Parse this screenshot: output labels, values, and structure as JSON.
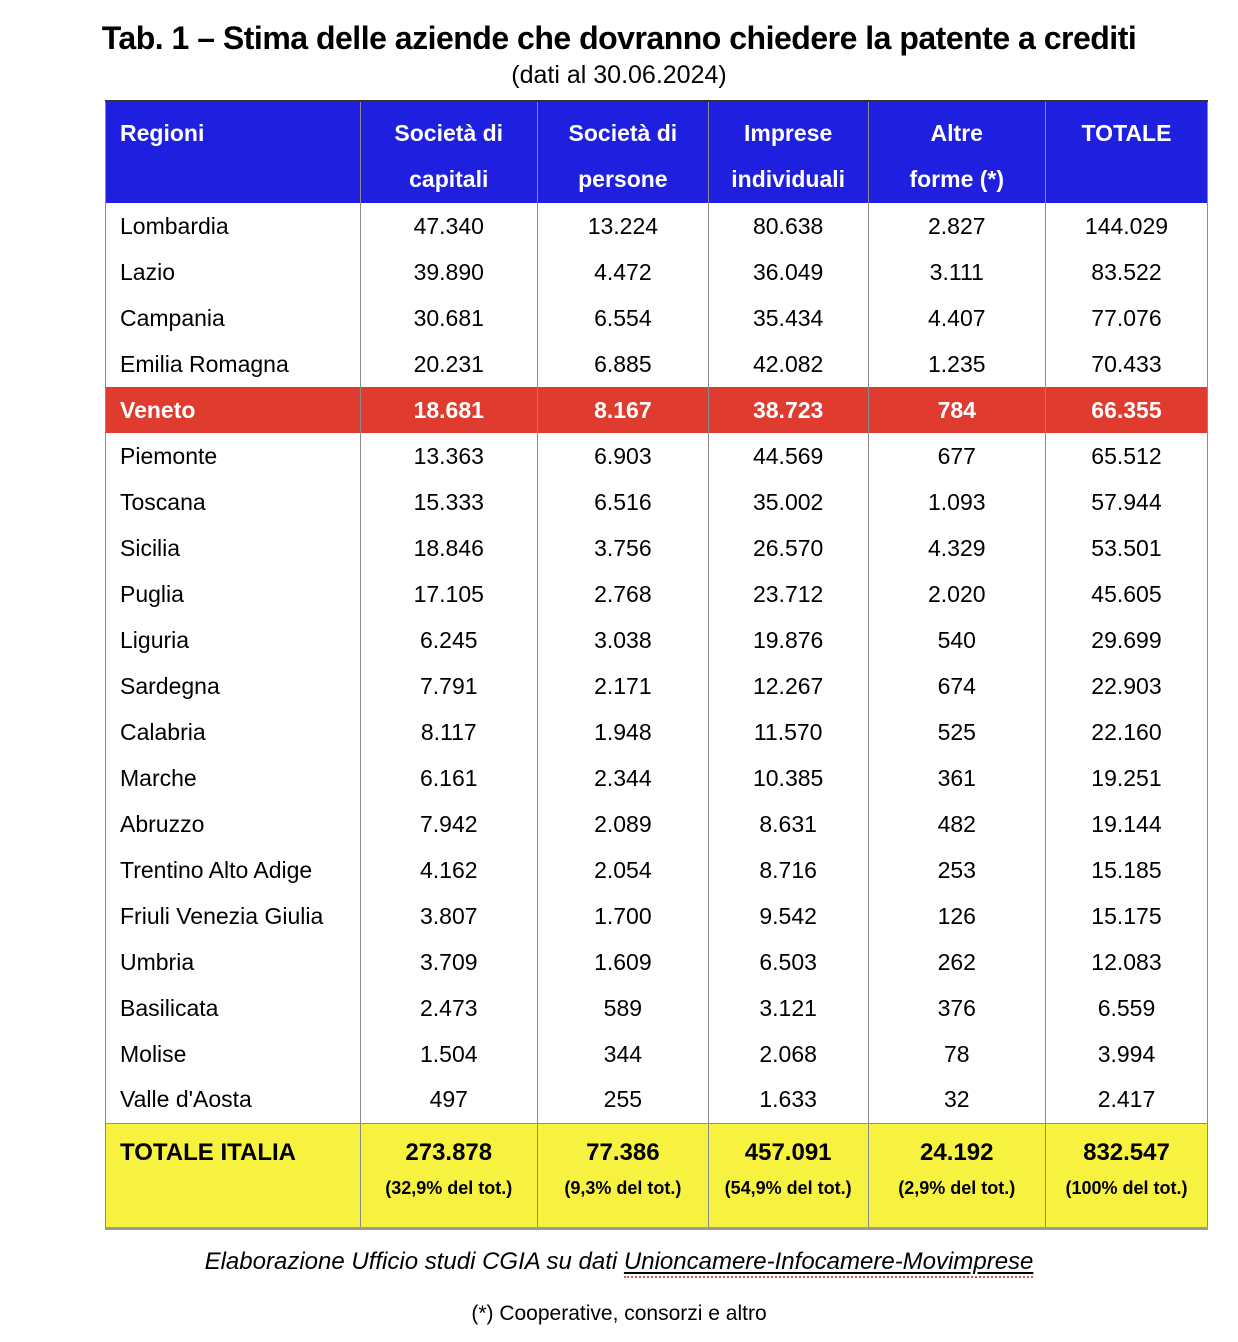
{
  "title": "Tab. 1 – Stima delle aziende che dovranno chiedere la patente a crediti",
  "subtitle": "(dati al 30.06.2024)",
  "colors": {
    "header_blue": "#1f1fe0",
    "highlight_red": "#e03b2f",
    "total_yellow": "#f7f23f",
    "squiggle_red": "#e05348",
    "border_gray": "#8a8a8a"
  },
  "table": {
    "headers": [
      {
        "line1": "Regioni",
        "line2": ""
      },
      {
        "line1": "Società di",
        "line2": "capitali"
      },
      {
        "line1": "Società di",
        "line2": "persone"
      },
      {
        "line1": "Imprese",
        "line2": "individuali"
      },
      {
        "line1": "Altre",
        "line2": "forme (*)"
      },
      {
        "line1": "TOTALE",
        "line2": ""
      }
    ],
    "rows": [
      {
        "region": "Lombardia",
        "values": [
          "47.340",
          "13.224",
          "80.638",
          "2.827",
          "144.029"
        ],
        "highlight": false
      },
      {
        "region": "Lazio",
        "values": [
          "39.890",
          "4.472",
          "36.049",
          "3.111",
          "83.522"
        ],
        "highlight": false
      },
      {
        "region": "Campania",
        "values": [
          "30.681",
          "6.554",
          "35.434",
          "4.407",
          "77.076"
        ],
        "highlight": false
      },
      {
        "region": "Emilia Romagna",
        "values": [
          "20.231",
          "6.885",
          "42.082",
          "1.235",
          "70.433"
        ],
        "highlight": false
      },
      {
        "region": "Veneto",
        "values": [
          "18.681",
          "8.167",
          "38.723",
          "784",
          "66.355"
        ],
        "highlight": true
      },
      {
        "region": "Piemonte",
        "values": [
          "13.363",
          "6.903",
          "44.569",
          "677",
          "65.512"
        ],
        "highlight": false
      },
      {
        "region": "Toscana",
        "values": [
          "15.333",
          "6.516",
          "35.002",
          "1.093",
          "57.944"
        ],
        "highlight": false
      },
      {
        "region": "Sicilia",
        "values": [
          "18.846",
          "3.756",
          "26.570",
          "4.329",
          "53.501"
        ],
        "highlight": false
      },
      {
        "region": "Puglia",
        "values": [
          "17.105",
          "2.768",
          "23.712",
          "2.020",
          "45.605"
        ],
        "highlight": false
      },
      {
        "region": "Liguria",
        "values": [
          "6.245",
          "3.038",
          "19.876",
          "540",
          "29.699"
        ],
        "highlight": false
      },
      {
        "region": "Sardegna",
        "values": [
          "7.791",
          "2.171",
          "12.267",
          "674",
          "22.903"
        ],
        "highlight": false
      },
      {
        "region": "Calabria",
        "values": [
          "8.117",
          "1.948",
          "11.570",
          "525",
          "22.160"
        ],
        "highlight": false
      },
      {
        "region": "Marche",
        "values": [
          "6.161",
          "2.344",
          "10.385",
          "361",
          "19.251"
        ],
        "highlight": false
      },
      {
        "region": "Abruzzo",
        "values": [
          "7.942",
          "2.089",
          "8.631",
          "482",
          "19.144"
        ],
        "highlight": false
      },
      {
        "region": "Trentino Alto Adige",
        "values": [
          "4.162",
          "2.054",
          "8.716",
          "253",
          "15.185"
        ],
        "highlight": false
      },
      {
        "region": "Friuli Venezia Giulia",
        "values": [
          "3.807",
          "1.700",
          "9.542",
          "126",
          "15.175"
        ],
        "highlight": false
      },
      {
        "region": "Umbria",
        "values": [
          "3.709",
          "1.609",
          "6.503",
          "262",
          "12.083"
        ],
        "highlight": false
      },
      {
        "region": "Basilicata",
        "values": [
          "2.473",
          "589",
          "3.121",
          "376",
          "6.559"
        ],
        "highlight": false
      },
      {
        "region": "Molise",
        "values": [
          "1.504",
          "344",
          "2.068",
          "78",
          "3.994"
        ],
        "highlight": false
      },
      {
        "region": "Valle d'Aosta",
        "values": [
          "497",
          "255",
          "1.633",
          "32",
          "2.417"
        ],
        "highlight": false
      }
    ],
    "total_row": {
      "label": "TOTALE ITALIA",
      "cells": [
        {
          "value": "273.878",
          "pct": "(32,9% del tot.)"
        },
        {
          "value": "77.386",
          "pct": "(9,3% del tot.)"
        },
        {
          "value": "457.091",
          "pct": "(54,9% del tot.)"
        },
        {
          "value": "24.192",
          "pct": "(2,9% del tot.)"
        },
        {
          "value": "832.547",
          "pct": "(100% del tot.)"
        }
      ]
    }
  },
  "footer": {
    "source_prefix": "Elaborazione Ufficio studi CGIA su dati ",
    "source_underlined": "Unioncamere-Infocamere-Movimprese",
    "note": "(*) Cooperative, consorzi e altro"
  }
}
